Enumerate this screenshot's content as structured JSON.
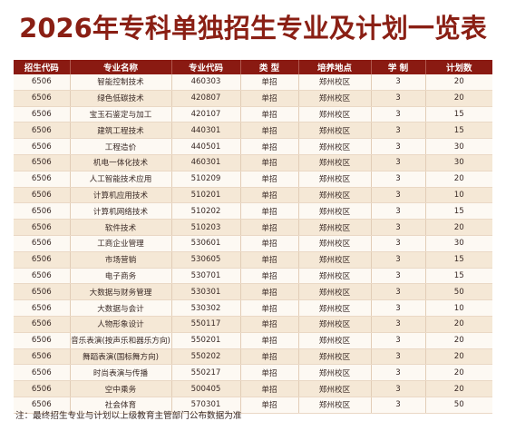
{
  "title": "2026年专科单独招生专业及计划一览表",
  "columns": [
    "招生代码",
    "专业名称",
    "专业代码",
    "类 型",
    "培养地点",
    "学 制",
    "计划数"
  ],
  "rows": [
    [
      "6506",
      "智能控制技术",
      "460303",
      "单招",
      "郑州校区",
      "3",
      "20"
    ],
    [
      "6506",
      "绿色低碳技术",
      "420807",
      "单招",
      "郑州校区",
      "3",
      "20"
    ],
    [
      "6506",
      "宝玉石鉴定与加工",
      "420107",
      "单招",
      "郑州校区",
      "3",
      "15"
    ],
    [
      "6506",
      "建筑工程技术",
      "440301",
      "单招",
      "郑州校区",
      "3",
      "15"
    ],
    [
      "6506",
      "工程造价",
      "440501",
      "单招",
      "郑州校区",
      "3",
      "30"
    ],
    [
      "6506",
      "机电一体化技术",
      "460301",
      "单招",
      "郑州校区",
      "3",
      "30"
    ],
    [
      "6506",
      "人工智能技术应用",
      "510209",
      "单招",
      "郑州校区",
      "3",
      "20"
    ],
    [
      "6506",
      "计算机应用技术",
      "510201",
      "单招",
      "郑州校区",
      "3",
      "10"
    ],
    [
      "6506",
      "计算机网络技术",
      "510202",
      "单招",
      "郑州校区",
      "3",
      "15"
    ],
    [
      "6506",
      "软件技术",
      "510203",
      "单招",
      "郑州校区",
      "3",
      "20"
    ],
    [
      "6506",
      "工商企业管理",
      "530601",
      "单招",
      "郑州校区",
      "3",
      "30"
    ],
    [
      "6506",
      "市场营销",
      "530605",
      "单招",
      "郑州校区",
      "3",
      "15"
    ],
    [
      "6506",
      "电子商务",
      "530701",
      "单招",
      "郑州校区",
      "3",
      "15"
    ],
    [
      "6506",
      "大数据与财务管理",
      "530301",
      "单招",
      "郑州校区",
      "3",
      "50"
    ],
    [
      "6506",
      "大数据与会计",
      "530302",
      "单招",
      "郑州校区",
      "3",
      "10"
    ],
    [
      "6506",
      "人物形象设计",
      "550117",
      "单招",
      "郑州校区",
      "3",
      "20"
    ],
    [
      "6506",
      "音乐表演(按声乐和器乐方向)",
      "550201",
      "单招",
      "郑州校区",
      "3",
      "20"
    ],
    [
      "6506",
      "舞蹈表演(国标舞方向)",
      "550202",
      "单招",
      "郑州校区",
      "3",
      "20"
    ],
    [
      "6506",
      "时尚表演与传播",
      "550217",
      "单招",
      "郑州校区",
      "3",
      "20"
    ],
    [
      "6506",
      "空中乘务",
      "500405",
      "单招",
      "郑州校区",
      "3",
      "20"
    ],
    [
      "6506",
      "社会体育",
      "570301",
      "单招",
      "郑州校区",
      "3",
      "50"
    ]
  ],
  "note": "注：最终招生专业与计划以上级教育主管部门公布数据为准",
  "colors": {
    "title": "#8a1f14",
    "header_bg": "#8a1a12",
    "row_light": "#fdf9f3",
    "row_dark": "#f5e8d6"
  }
}
